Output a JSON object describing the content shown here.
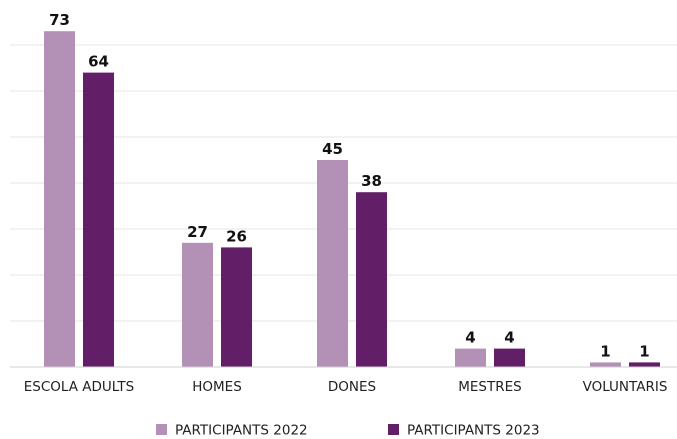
{
  "chart_data": {
    "type": "bar",
    "categories": [
      "ESCOLA ADULTS",
      "HOMES",
      "DONES",
      "MESTRES",
      "VOLUNTARIS"
    ],
    "series": [
      {
        "name": "PARTICIPANTS 2022",
        "values": [
          73,
          27,
          45,
          4,
          1
        ],
        "color": "#b391b7"
      },
      {
        "name": "PARTICIPANTS 2023",
        "values": [
          64,
          26,
          38,
          4,
          1
        ],
        "color": "#621f67"
      }
    ],
    "title": "",
    "xlabel": "",
    "ylabel": "",
    "ylim": [
      0,
      70
    ],
    "grid": true,
    "legend": "bottom-center",
    "data_labels": true
  }
}
